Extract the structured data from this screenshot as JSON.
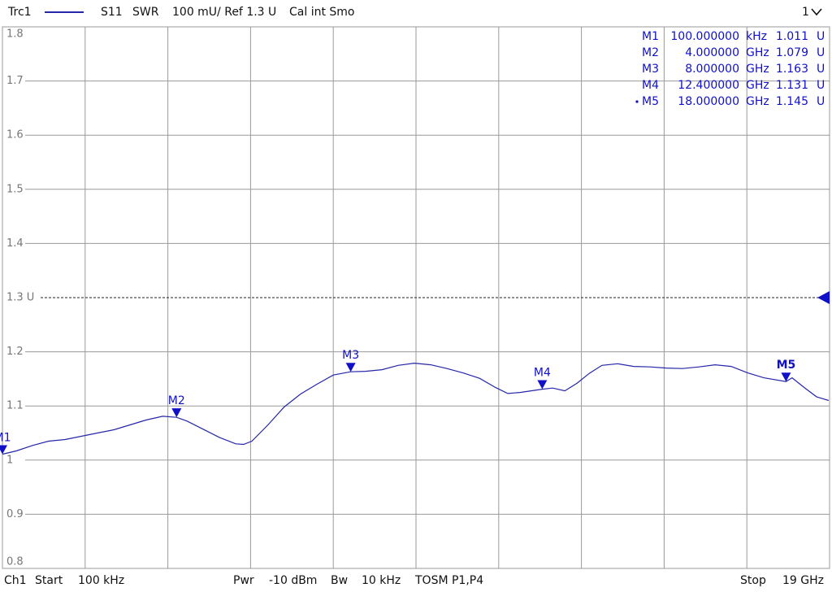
{
  "chart_data": {
    "type": "line",
    "header": {
      "measurement": "S11",
      "format": "SWR",
      "scale": "100 mU/ Ref 1.3 U",
      "cal": "Cal int Smo",
      "channel_menu": "1"
    },
    "footer": {
      "channel": "Ch1",
      "start_label": "Start",
      "start": "100 kHz",
      "power_label": "Pwr",
      "power": "-10 dBm",
      "bw_label": "Bw",
      "bw": "10 kHz",
      "cal_type": "TOSM P1,P4",
      "stop_label": "Stop",
      "stop": "19 GHz"
    },
    "xlim": [
      0.0001,
      19
    ],
    "ylim": [
      0.8,
      1.8
    ],
    "yticks": [
      0.8,
      0.9,
      1,
      1.1,
      1.2,
      {
        "value": 1.3,
        "label": "1.3 U"
      },
      1.4,
      1.5,
      1.6,
      1.7,
      1.8
    ],
    "grid": true,
    "ref_level": 1.3,
    "series": [
      {
        "name": "Trc1",
        "color": "#2626a8",
        "x": [
          0.0001,
          0.32,
          0.69,
          1.06,
          1.44,
          1.81,
          2.18,
          2.56,
          2.93,
          3.3,
          3.68,
          4.0,
          4.24,
          4.61,
          4.98,
          5.36,
          5.54,
          5.73,
          6.1,
          6.47,
          6.85,
          7.22,
          7.6,
          8.0,
          8.34,
          8.72,
          9.09,
          9.46,
          9.84,
          10.21,
          10.58,
          10.96,
          11.33,
          11.61,
          11.89,
          12.4,
          12.64,
          12.92,
          13.2,
          13.48,
          13.77,
          14.13,
          14.5,
          14.88,
          15.25,
          15.62,
          16.0,
          16.37,
          16.74,
          17.12,
          17.49,
          18.0,
          18.14,
          18.42,
          18.7,
          18.98
        ],
        "values": [
          1.011,
          1.017,
          1.027,
          1.035,
          1.038,
          1.044,
          1.05,
          1.056,
          1.065,
          1.074,
          1.081,
          1.079,
          1.072,
          1.057,
          1.042,
          1.03,
          1.029,
          1.035,
          1.065,
          1.098,
          1.122,
          1.14,
          1.157,
          1.163,
          1.164,
          1.167,
          1.175,
          1.179,
          1.176,
          1.169,
          1.161,
          1.151,
          1.134,
          1.123,
          1.125,
          1.131,
          1.133,
          1.128,
          1.142,
          1.16,
          1.175,
          1.178,
          1.173,
          1.172,
          1.17,
          1.169,
          1.172,
          1.176,
          1.173,
          1.161,
          1.152,
          1.145,
          1.152,
          1.134,
          1.117,
          1.11
        ]
      }
    ],
    "markers": [
      {
        "name": "M1",
        "x": 0.0001,
        "x_label": "100.000000",
        "x_unit": "kHz",
        "value": 1.011,
        "unit": "U"
      },
      {
        "name": "M2",
        "x": 4,
        "x_label": "4.000000",
        "x_unit": "GHz",
        "value": 1.079,
        "unit": "U"
      },
      {
        "name": "M3",
        "x": 8,
        "x_label": "8.000000",
        "x_unit": "GHz",
        "value": 1.163,
        "unit": "U"
      },
      {
        "name": "M4",
        "x": 12.4,
        "x_label": "12.400000",
        "x_unit": "GHz",
        "value": 1.131,
        "unit": "U"
      },
      {
        "name": "M5",
        "x": 18,
        "x_label": "18.000000",
        "x_unit": "GHz",
        "value": 1.145,
        "unit": "U",
        "active": true
      }
    ]
  }
}
